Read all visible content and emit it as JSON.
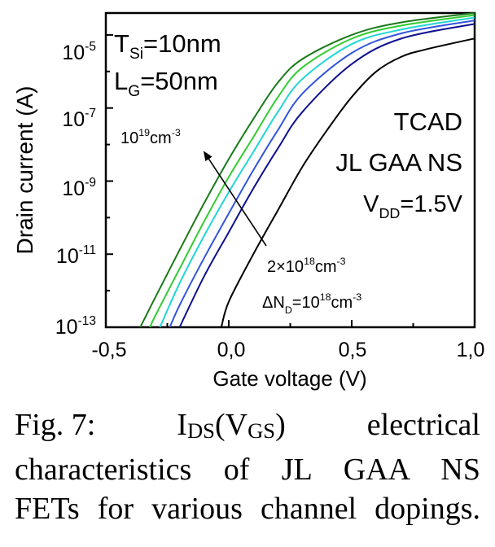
{
  "chart_data": {
    "type": "line",
    "xlabel": "Gate voltage (V)",
    "ylabel": "Drain current (A)",
    "xlim": [
      -0.5,
      1.0
    ],
    "ylim_log10": [
      -13,
      -4.4
    ],
    "y_scale": "log",
    "grid": false,
    "x_ticks": [
      "-0,5",
      "0,0",
      "0,5",
      "1,0"
    ],
    "y_ticks": [
      {
        "base": "10",
        "exp": "-5"
      },
      {
        "base": "10",
        "exp": "-7"
      },
      {
        "base": "10",
        "exp": "-9"
      },
      {
        "base": "10",
        "exp": "-11"
      },
      {
        "base": "10",
        "exp": "-13"
      }
    ],
    "series": [
      {
        "color": "#1a7a1a",
        "x": [
          -0.36,
          -0.3,
          -0.2,
          -0.1,
          0.0,
          0.1,
          0.2,
          0.3,
          0.5,
          0.7,
          1.0
        ],
        "y": [
          1e-13,
          6.3e-13,
          1.3e-11,
          2.5e-10,
          4e-09,
          5e-08,
          5e-07,
          2.2e-06,
          1e-05,
          2.2e-05,
          4e-05
        ]
      },
      {
        "color": "#33cc33",
        "x": [
          -0.32,
          -0.3,
          -0.2,
          -0.1,
          0.0,
          0.1,
          0.2,
          0.3,
          0.5,
          0.7,
          1.0
        ],
        "y": [
          1e-13,
          2e-13,
          4e-12,
          7.9e-11,
          1.3e-09,
          1.6e-08,
          2e-07,
          1.3e-06,
          7.9e-06,
          1.8e-05,
          3.5e-05
        ]
      },
      {
        "color": "#22d6d6",
        "x": [
          -0.28,
          -0.2,
          -0.1,
          0.0,
          0.1,
          0.2,
          0.3,
          0.5,
          0.7,
          1.0
        ],
        "y": [
          1e-13,
          1.6e-12,
          3.2e-11,
          5e-10,
          6.3e-09,
          7.9e-08,
          6.3e-07,
          5.6e-06,
          1.4e-05,
          3e-05
        ]
      },
      {
        "color": "#3355dd",
        "x": [
          -0.24,
          -0.2,
          -0.1,
          0.0,
          0.1,
          0.2,
          0.3,
          0.5,
          0.7,
          1.0
        ],
        "y": [
          1e-13,
          4e-13,
          7.9e-12,
          1.3e-10,
          2e-09,
          2.5e-08,
          2.5e-07,
          3.2e-06,
          1.1e-05,
          2.5e-05
        ]
      },
      {
        "color": "#101090",
        "x": [
          -0.2,
          -0.1,
          0.0,
          0.1,
          0.2,
          0.3,
          0.5,
          0.7,
          1.0
        ],
        "y": [
          1e-13,
          2.5e-12,
          4e-11,
          6.3e-10,
          7.9e-09,
          7.9e-08,
          1.6e-06,
          7.9e-06,
          2e-05
        ]
      },
      {
        "color": "#000000",
        "x": [
          -0.03,
          0.0,
          0.1,
          0.2,
          0.3,
          0.4,
          0.5,
          0.6,
          0.7,
          0.8,
          1.0
        ],
        "y": [
          1e-13,
          5e-13,
          1e-11,
          1.6e-10,
          2.5e-09,
          2.5e-08,
          2e-07,
          1e-06,
          2.5e-06,
          4e-06,
          8e-06
        ]
      }
    ],
    "annotations": {
      "tsi": {
        "main": "T",
        "sub": "Si",
        "tail": "=10nm"
      },
      "lg": {
        "main": "L",
        "sub": "G",
        "tail": "=50nm"
      },
      "tcad": "TCAD",
      "jl": "JL GAA NS",
      "vdd": {
        "main": "V",
        "sub": "DD",
        "tail": "=1.5V"
      },
      "dop_high": {
        "base": "10",
        "exp": "19",
        "unit": "cm",
        "unit_exp": "-3"
      },
      "dop_low": {
        "pre": "2×10",
        "exp": "18",
        "unit": "cm",
        "unit_exp": "-3"
      },
      "step": {
        "pre": "ΔN",
        "sub": "D",
        "eq": "=10",
        "exp": "18",
        "unit": "cm",
        "unit_exp": "-3"
      }
    }
  },
  "caption": {
    "line1_a": "Fig. 7:",
    "line1_b_main": "I",
    "line1_b_sub": "DS",
    "line1_b_mid": "(V",
    "line1_b_sub2": "GS",
    "line1_b_end": ")",
    "line1_c": "electrical",
    "line2": "characteristics of JL GAA NS",
    "line3": "FETs for various channel dopings."
  }
}
